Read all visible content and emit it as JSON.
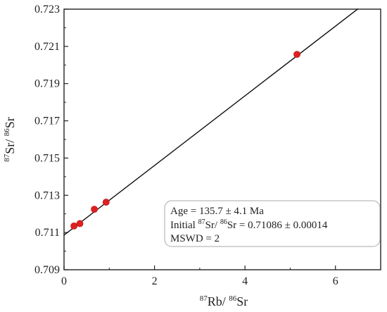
{
  "chart_data": {
    "type": "scatter",
    "xlabel": {
      "sup1": "87",
      "base1": "Rb/ ",
      "sup2": "86",
      "base2": "Sr"
    },
    "ylabel": {
      "sup1": "87",
      "base1": "Sr/ ",
      "sup2": "86",
      "base2": "Sr"
    },
    "xlim": [
      0,
      7
    ],
    "ylim": [
      0.709,
      0.723
    ],
    "x_ticks": [
      0,
      2,
      4,
      6
    ],
    "x_tick_labels": [
      "0",
      "2",
      "4",
      "6"
    ],
    "y_ticks": [
      0.709,
      0.711,
      0.713,
      0.715,
      0.717,
      0.719,
      0.721,
      0.723
    ],
    "y_tick_labels": [
      "0.709",
      "0.711",
      "0.713",
      "0.715",
      "0.717",
      "0.719",
      "0.721",
      "0.723"
    ],
    "grid": false,
    "points": [
      {
        "x": 0.22,
        "y": 0.71135
      },
      {
        "x": 0.35,
        "y": 0.71148
      },
      {
        "x": 0.67,
        "y": 0.71225
      },
      {
        "x": 0.93,
        "y": 0.71263
      },
      {
        "x": 5.15,
        "y": 0.72057
      }
    ],
    "point_color": "#e02020",
    "regression_line": {
      "x": [
        0,
        6.5
      ],
      "y": [
        0.71086,
        0.72302
      ]
    },
    "annotation": {
      "line1": "Age = 135.7 ± 4.1 Ma",
      "line2_prefix": "Initial ",
      "line2_sup1": "87",
      "line2_mid": "Sr/ ",
      "line2_sup2": "86",
      "line2_suffix": "Sr = 0.71086 ± 0.00014",
      "line3": "MSWD = 2"
    }
  }
}
